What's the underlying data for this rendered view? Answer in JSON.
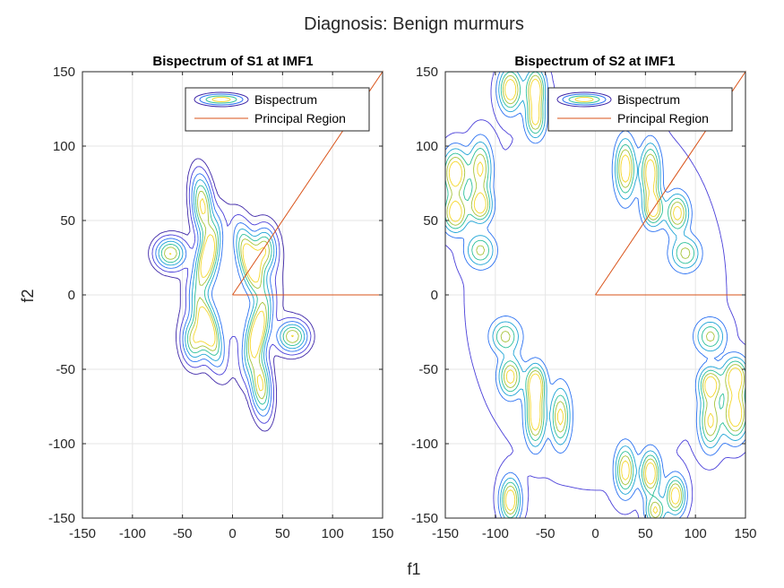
{
  "figure": {
    "suptitle": "Diagnosis: Benign murmurs",
    "xlabel": "f1",
    "ylabel": "f2"
  },
  "colors": {
    "principal_region": "#D95319",
    "contour_levels": [
      "#3e26a8",
      "#4a3fd9",
      "#2c72f2",
      "#1ea4d6",
      "#2dc09a",
      "#a7c43c",
      "#f5d72a"
    ],
    "grid": "#e6e6e6",
    "axes": "#262626"
  },
  "chart_data": [
    {
      "type": "contour",
      "title": "Bispectrum of S1 at IMF1",
      "xlim": [
        -150,
        150
      ],
      "ylim": [
        -150,
        150
      ],
      "xticks": [
        -150,
        -100,
        -50,
        0,
        50,
        100,
        150
      ],
      "yticks": [
        -150,
        -100,
        -50,
        0,
        50,
        100,
        150
      ],
      "grid": true,
      "legend": {
        "placement": "top-right",
        "entries": [
          "Bispectrum",
          "Principal Region"
        ]
      },
      "principal_region": {
        "x": [
          0,
          150,
          150,
          0
        ],
        "y": [
          0,
          150,
          0,
          0
        ]
      },
      "contour_peaks": [
        {
          "x": -30,
          "y": 60,
          "sx": 6,
          "sy": 13,
          "amp": 0.8,
          "rot": 10
        },
        {
          "x": -62,
          "y": 28,
          "sx": 9,
          "sy": 6,
          "amp": 0.75,
          "rot": 0
        },
        {
          "x": -25,
          "y": 25,
          "sx": 6,
          "sy": 15,
          "amp": 1.0,
          "rot": -20
        },
        {
          "x": 18,
          "y": 22,
          "sx": 6,
          "sy": 15,
          "amp": 1.0,
          "rot": 25
        },
        {
          "x": 32,
          "y": 30,
          "sx": 7,
          "sy": 9,
          "amp": 0.7,
          "rot": 0
        },
        {
          "x": -25,
          "y": -22,
          "sx": 6,
          "sy": 15,
          "amp": 1.0,
          "rot": 25
        },
        {
          "x": 25,
          "y": -25,
          "sx": 6,
          "sy": 15,
          "amp": 1.0,
          "rot": -20
        },
        {
          "x": 60,
          "y": -28,
          "sx": 9,
          "sy": 6,
          "amp": 0.75,
          "rot": 0
        },
        {
          "x": 28,
          "y": -60,
          "sx": 6,
          "sy": 13,
          "amp": 0.8,
          "rot": 10
        },
        {
          "x": -38,
          "y": -30,
          "sx": 7,
          "sy": 9,
          "amp": 0.7,
          "rot": 0
        },
        {
          "x": 0,
          "y": 0,
          "sx": 30,
          "sy": 30,
          "amp": 0.15,
          "rot": 0
        }
      ]
    },
    {
      "type": "contour",
      "title": "Bispectrum of S2 at IMF1",
      "xlim": [
        -150,
        150
      ],
      "ylim": [
        -150,
        150
      ],
      "xticks": [
        -150,
        -100,
        -50,
        0,
        50,
        100,
        150
      ],
      "yticks": [
        -150,
        -100,
        -50,
        0,
        50,
        100,
        150
      ],
      "grid": true,
      "legend": {
        "placement": "top-right",
        "entries": [
          "Bispectrum",
          "Principal Region"
        ]
      },
      "principal_region": {
        "x": [
          0,
          150,
          150,
          0
        ],
        "y": [
          0,
          150,
          0,
          0
        ]
      },
      "contour_peaks": [
        {
          "x": -85,
          "y": 138,
          "sx": 7,
          "sy": 9,
          "amp": 0.9,
          "rot": 0
        },
        {
          "x": -60,
          "y": 138,
          "sx": 6,
          "sy": 9,
          "amp": 0.9,
          "rot": 0
        },
        {
          "x": -60,
          "y": 118,
          "sx": 6,
          "sy": 8,
          "amp": 0.7,
          "rot": 0
        },
        {
          "x": -140,
          "y": 82,
          "sx": 8,
          "sy": 10,
          "amp": 0.9,
          "rot": 0
        },
        {
          "x": -115,
          "y": 85,
          "sx": 7,
          "sy": 12,
          "amp": 0.7,
          "rot": 0
        },
        {
          "x": -140,
          "y": 55,
          "sx": 8,
          "sy": 8,
          "amp": 0.85,
          "rot": 0
        },
        {
          "x": -115,
          "y": 60,
          "sx": 7,
          "sy": 7,
          "amp": 0.8,
          "rot": 0
        },
        {
          "x": -115,
          "y": 30,
          "sx": 9,
          "sy": 7,
          "amp": 0.55,
          "rot": 0
        },
        {
          "x": 30,
          "y": 85,
          "sx": 6,
          "sy": 12,
          "amp": 0.85,
          "rot": 0
        },
        {
          "x": 55,
          "y": 82,
          "sx": 6,
          "sy": 12,
          "amp": 0.85,
          "rot": 0
        },
        {
          "x": 58,
          "y": 58,
          "sx": 6,
          "sy": 7,
          "amp": 0.8,
          "rot": 0
        },
        {
          "x": 82,
          "y": 55,
          "sx": 7,
          "sy": 8,
          "amp": 0.75,
          "rot": 0
        },
        {
          "x": 90,
          "y": 28,
          "sx": 9,
          "sy": 7,
          "amp": 0.55,
          "rot": 0
        },
        {
          "x": -85,
          "y": -138,
          "sx": 6,
          "sy": 9,
          "amp": 0.9,
          "rot": 0
        },
        {
          "x": 30,
          "y": -118,
          "sx": 6,
          "sy": 10,
          "amp": 0.8,
          "rot": 0
        },
        {
          "x": 55,
          "y": -120,
          "sx": 6,
          "sy": 9,
          "amp": 0.9,
          "rot": 0
        },
        {
          "x": 80,
          "y": -135,
          "sx": 6,
          "sy": 8,
          "amp": 0.85,
          "rot": 0
        },
        {
          "x": 60,
          "y": -145,
          "sx": 6,
          "sy": 6,
          "amp": 0.7,
          "rot": 0
        },
        {
          "x": 140,
          "y": -80,
          "sx": 8,
          "sy": 11,
          "amp": 0.9,
          "rot": 0
        },
        {
          "x": 115,
          "y": -85,
          "sx": 7,
          "sy": 12,
          "amp": 0.7,
          "rot": 0
        },
        {
          "x": 140,
          "y": -55,
          "sx": 8,
          "sy": 8,
          "amp": 0.85,
          "rot": 0
        },
        {
          "x": 115,
          "y": -60,
          "sx": 7,
          "sy": 7,
          "amp": 0.8,
          "rot": 0
        },
        {
          "x": 115,
          "y": -28,
          "sx": 9,
          "sy": 7,
          "amp": 0.55,
          "rot": 0
        },
        {
          "x": -60,
          "y": -60,
          "sx": 6,
          "sy": 8,
          "amp": 0.85,
          "rot": 0
        },
        {
          "x": -85,
          "y": -55,
          "sx": 7,
          "sy": 8,
          "amp": 0.75,
          "rot": 0
        },
        {
          "x": -60,
          "y": -82,
          "sx": 6,
          "sy": 12,
          "amp": 0.85,
          "rot": 0
        },
        {
          "x": -35,
          "y": -82,
          "sx": 6,
          "sy": 12,
          "amp": 0.7,
          "rot": 0
        },
        {
          "x": -90,
          "y": -28,
          "sx": 9,
          "sy": 7,
          "amp": 0.55,
          "rot": 0
        },
        {
          "x": 0,
          "y": 0,
          "sx": 160,
          "sy": 160,
          "amp": 0.14,
          "rot": 0
        }
      ]
    }
  ]
}
